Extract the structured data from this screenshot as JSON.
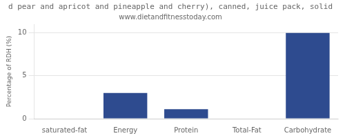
{
  "chart_data": {
    "type": "bar",
    "title": "d pear and apricot and pineapple and cherry), canned, juice pack, solid",
    "subtitle": "www.dietandfitnesstoday.com",
    "categories": [
      "saturated-fat",
      "Energy",
      "Protein",
      "Total-Fat",
      "Carbohydrate"
    ],
    "values": [
      0,
      3.0,
      1.1,
      0.05,
      10.0
    ],
    "color": "#2E4B8F",
    "ylabel": "Percentage of RDH (%)",
    "ylim": [
      0,
      11
    ],
    "yticks": [
      0,
      5,
      10
    ],
    "grid": true
  }
}
